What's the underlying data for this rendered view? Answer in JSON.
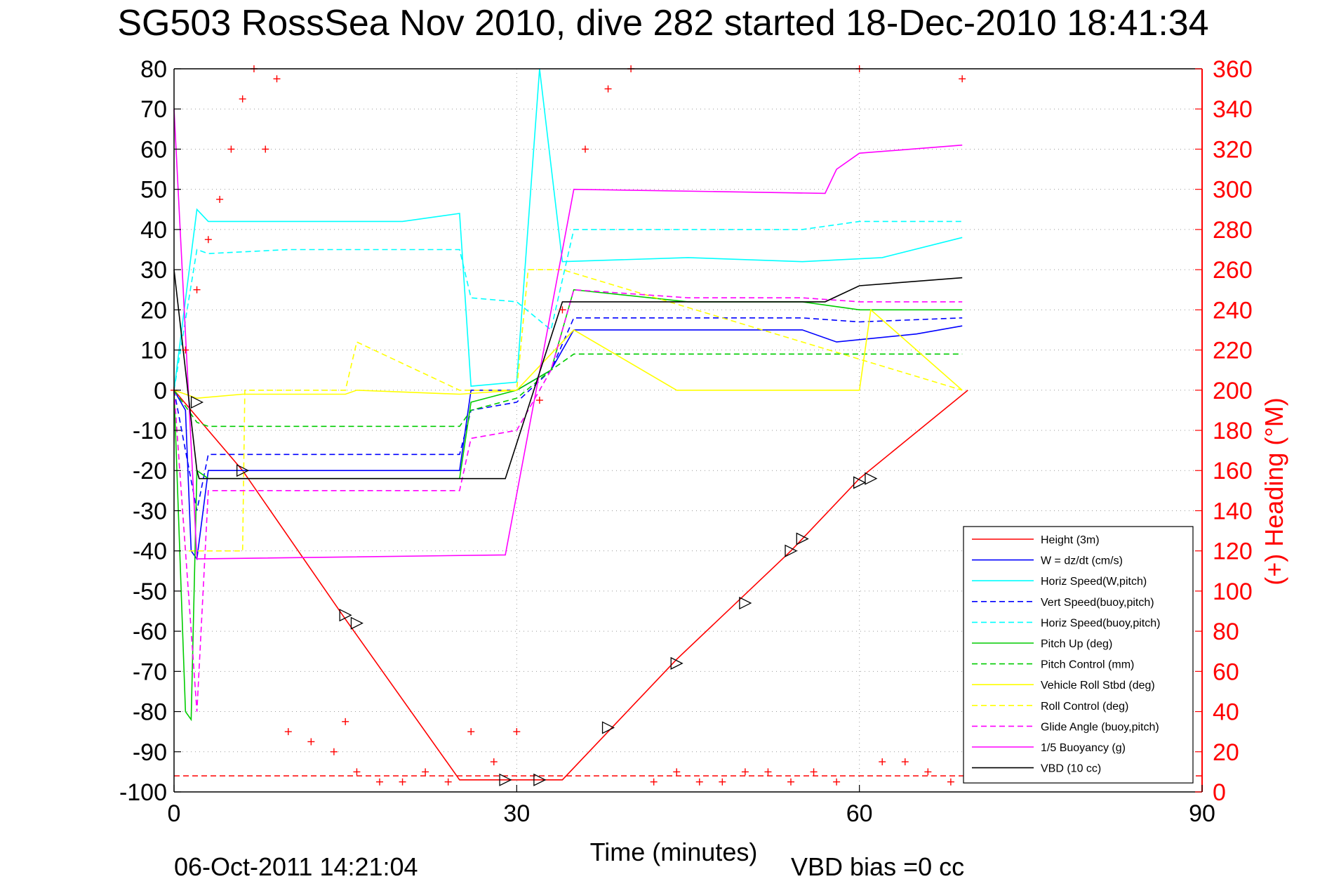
{
  "chart_data": {
    "type": "line",
    "title": "SG503 RossSea Nov 2010, dive 282 started 18-Dec-2010 18:41:34",
    "xlabel": "Time (minutes)",
    "ylabel_right": "(+) Heading (°M)",
    "footer_left": "06-Oct-2011 14:21:04",
    "footer_right": "VBD bias =0 cc",
    "xlim": [
      0,
      90
    ],
    "ylim_left": [
      -100,
      80
    ],
    "ylim_right": [
      0,
      360
    ],
    "x_ticks": [
      0,
      30,
      60,
      90
    ],
    "y_ticks_left": [
      80,
      70,
      60,
      50,
      40,
      30,
      20,
      10,
      0,
      -10,
      -20,
      -30,
      -40,
      -50,
      -60,
      -70,
      -80,
      -90,
      -100
    ],
    "y_ticks_right": [
      360,
      340,
      320,
      300,
      280,
      260,
      240,
      220,
      200,
      180,
      160,
      140,
      120,
      100,
      80,
      60,
      40,
      20,
      0
    ],
    "grid": "dotted",
    "legend_placement": "bottom-right",
    "series": [
      {
        "name": "Height (3m)",
        "color": "#ff0000",
        "style": "solid",
        "x": [
          0,
          6,
          15,
          25,
          29,
          34,
          44,
          54,
          60,
          69.5
        ],
        "y": [
          0,
          -20,
          -57,
          -97,
          -97,
          -97,
          -67,
          -40,
          -22,
          0
        ]
      },
      {
        "name": "W = dz/dt (cm/s)",
        "color": "#0000ff",
        "style": "solid",
        "x": [
          0,
          1,
          1.5,
          2,
          3,
          6,
          12,
          20,
          25,
          26,
          30,
          33,
          35,
          45,
          55,
          58,
          65,
          69
        ],
        "y": [
          0,
          -5,
          -40,
          -42,
          -20,
          -20,
          -20,
          -20,
          -20,
          0,
          0,
          5,
          15,
          15,
          15,
          12,
          14,
          16
        ]
      },
      {
        "name": "Horiz Speed(W,pitch)",
        "color": "#00ffff",
        "style": "solid",
        "x": [
          0,
          2,
          3,
          10,
          20,
          25,
          26,
          30,
          32,
          34,
          45,
          55,
          62,
          69
        ],
        "y": [
          0,
          45,
          42,
          42,
          42,
          44,
          1,
          2,
          80,
          32,
          33,
          32,
          33,
          38
        ]
      },
      {
        "name": "Vert Speed(buoy,pitch)",
        "color": "#0000ff",
        "style": "dashed",
        "x": [
          0,
          2,
          3,
          12,
          25,
          26,
          30,
          33,
          35,
          45,
          55,
          60,
          69
        ],
        "y": [
          0,
          -30,
          -16,
          -16,
          -16,
          -5,
          -3,
          5,
          18,
          18,
          18,
          17,
          18
        ]
      },
      {
        "name": "Horiz Speed(buoy,pitch)",
        "color": "#00ffff",
        "style": "dashed",
        "x": [
          0,
          2,
          3,
          10,
          25,
          26,
          30,
          33,
          35,
          45,
          55,
          60,
          69
        ],
        "y": [
          0,
          35,
          34,
          35,
          35,
          23,
          22,
          15,
          40,
          40,
          40,
          42,
          42
        ]
      },
      {
        "name": "Pitch Up (deg)",
        "color": "#00cc00",
        "style": "solid",
        "x": [
          0,
          1,
          1.5,
          2,
          3,
          10,
          20,
          25,
          26,
          30,
          33,
          35,
          45,
          55,
          60,
          69
        ],
        "y": [
          0,
          -80,
          -82,
          -20,
          -22,
          -22,
          -22,
          -22,
          -3,
          0,
          5,
          25,
          22,
          22,
          20,
          20
        ]
      },
      {
        "name": "Pitch Control (mm)",
        "color": "#00cc00",
        "style": "dashed",
        "x": [
          0,
          2,
          3,
          25,
          26,
          30,
          33,
          35,
          69
        ],
        "y": [
          0,
          -8,
          -9,
          -9,
          -5,
          -2,
          5,
          9,
          9
        ]
      },
      {
        "name": "Vehicle Roll Stbd (deg)",
        "color": "#ffff00",
        "style": "solid",
        "x": [
          0,
          2,
          6,
          15,
          16,
          25,
          30,
          35,
          44,
          45,
          50,
          55,
          60,
          61,
          69
        ],
        "y": [
          0,
          -2,
          -1,
          -1,
          0,
          -1,
          0,
          15,
          0,
          0,
          0,
          0,
          0,
          20,
          0
        ]
      },
      {
        "name": "Roll Control (deg)",
        "color": "#ffff00",
        "style": "dashed",
        "x": [
          0,
          1,
          6,
          6.2,
          15,
          16,
          25,
          30,
          31,
          34,
          69
        ],
        "y": [
          0,
          -40,
          -40,
          0,
          0,
          12,
          0,
          0,
          30,
          30,
          0
        ]
      },
      {
        "name": "Glide Angle (buoy,pitch)",
        "color": "#ff00ff",
        "style": "dashed",
        "x": [
          0,
          2,
          3,
          10,
          25,
          26,
          30,
          33,
          35,
          45,
          55,
          60,
          69
        ],
        "y": [
          0,
          -80,
          -25,
          -25,
          -25,
          -12,
          -10,
          5,
          25,
          23,
          23,
          22,
          22
        ]
      },
      {
        "name": "1/5 Buoyancy (g)",
        "color": "#ff00ff",
        "style": "solid",
        "x": [
          0,
          2,
          29,
          35,
          57,
          58,
          60,
          69
        ],
        "y": [
          70,
          -42,
          -41,
          50,
          49,
          55,
          59,
          61
        ]
      },
      {
        "name": "VBD (10 cc)",
        "color": "#000000",
        "style": "solid",
        "x": [
          0,
          2,
          2.2,
          25,
          29,
          34,
          45,
          57,
          60,
          69
        ],
        "y": [
          30,
          -20,
          -22,
          -22,
          -22,
          22,
          22,
          22,
          26,
          28
        ]
      }
    ],
    "heading_series": {
      "name": "Heading",
      "axis": "right",
      "color": "#ff0000",
      "marker": "+",
      "x": [
        0,
        1,
        2,
        3,
        4,
        5,
        6,
        7,
        8,
        9,
        10,
        12,
        14,
        15,
        16,
        18,
        20,
        22,
        24,
        26,
        28,
        30,
        32,
        34,
        36,
        38,
        40,
        42,
        44,
        46,
        48,
        50,
        52,
        54,
        56,
        58,
        60,
        62,
        64,
        66,
        68,
        69
      ],
      "y": [
        200,
        220,
        250,
        275,
        295,
        320,
        345,
        360,
        320,
        355,
        30,
        25,
        20,
        35,
        10,
        5,
        5,
        10,
        5,
        30,
        15,
        30,
        195,
        240,
        320,
        350,
        360,
        5,
        10,
        5,
        5,
        10,
        10,
        5,
        10,
        5,
        360,
        15,
        15,
        10,
        5,
        355
      ]
    },
    "heading_reference": {
      "value": 8,
      "axis": "right",
      "color": "#ff0000",
      "style": "dashed"
    },
    "markers": {
      "style": "triangle",
      "color": "#000000",
      "points": [
        [
          2,
          -3
        ],
        [
          6,
          -20
        ],
        [
          15,
          -56
        ],
        [
          16,
          -58
        ],
        [
          29,
          -97
        ],
        [
          32,
          -97
        ],
        [
          38,
          -84
        ],
        [
          44,
          -68
        ],
        [
          50,
          -53
        ],
        [
          54,
          -40
        ],
        [
          55,
          -37
        ],
        [
          60,
          -23
        ],
        [
          61,
          -22
        ]
      ]
    }
  }
}
